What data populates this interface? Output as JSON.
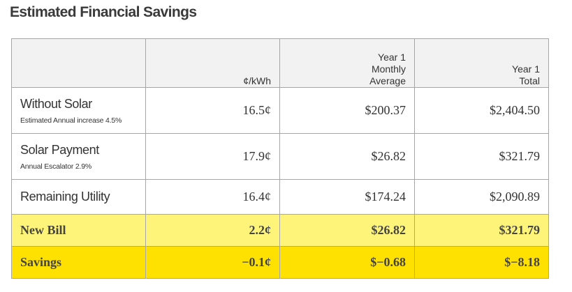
{
  "title": "Estimated Financial Savings",
  "colors": {
    "header_bg": "#f2f2f2",
    "newbill_bg": "#fff47a",
    "savings_bg": "#ffe100",
    "border": "#a6a6a6"
  },
  "table": {
    "headers": {
      "label": "",
      "rate": "¢/kWh",
      "monthly": [
        "Year 1",
        "Monthly",
        "Average"
      ],
      "total": [
        "Year 1",
        "Total"
      ]
    },
    "rows": [
      {
        "label": "Without Solar",
        "sublabel": "Estimated Annual increase 4.5%",
        "rate": "16.5¢",
        "monthly": "$200.37",
        "total": "$2,404.50"
      },
      {
        "label": "Solar Payment",
        "sublabel": "Annual Escalator 2.9%",
        "rate": "17.9¢",
        "monthly": "$26.82",
        "total": "$321.79"
      },
      {
        "label": "Remaining Utility",
        "rate": "16.4¢",
        "monthly": "$174.24",
        "total": "$2,090.89"
      },
      {
        "label": "New Bill",
        "rate": "2.2¢",
        "monthly": "$26.82",
        "total": "$321.79"
      },
      {
        "label": "Savings",
        "rate": "−0.1¢",
        "monthly": "$−0.68",
        "total": "$−8.18"
      }
    ]
  }
}
